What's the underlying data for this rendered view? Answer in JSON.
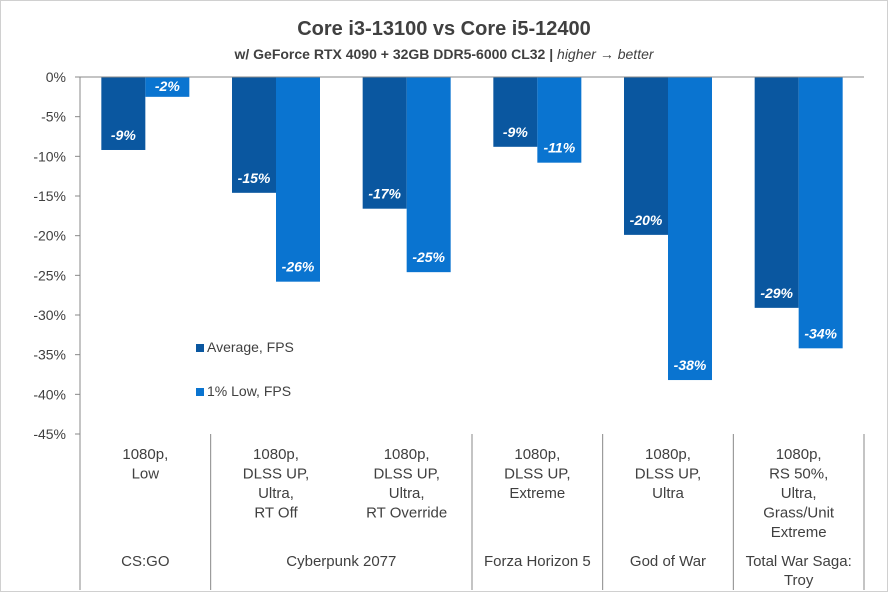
{
  "chart_data": {
    "type": "bar",
    "title": "Core i3-13100 vs Core i5-12400",
    "subtitle_main": "w/ GeForce RTX 4090 + 32GB DDR5-6000 CL32 |",
    "subtitle_italic": "higher → better",
    "ylim": [
      -45,
      0
    ],
    "yticks": [
      "0%",
      "-5%",
      "-10%",
      "-15%",
      "-20%",
      "-25%",
      "-30%",
      "-35%",
      "-40%",
      "-45%"
    ],
    "categories": [
      {
        "setting": [
          "1080p,",
          "Low"
        ],
        "game": "CS:GO"
      },
      {
        "setting": [
          "1080p,",
          "DLSS UP,",
          "Ultra,",
          "RT Off"
        ],
        "game": "Cyberpunk 2077"
      },
      {
        "setting": [
          "1080p,",
          "DLSS UP,",
          "Ultra,",
          "RT Override"
        ],
        "game": ""
      },
      {
        "setting": [
          "1080p,",
          "DLSS UP,",
          "Extreme"
        ],
        "game": "Forza Horizon 5"
      },
      {
        "setting": [
          "1080p,",
          "DLSS UP,",
          "Ultra"
        ],
        "game": "God of War"
      },
      {
        "setting": [
          "1080p,",
          "RS 50%,",
          "Ultra,",
          "Grass/Unit",
          "Extreme"
        ],
        "game": [
          "Total War Saga:",
          "Troy"
        ]
      }
    ],
    "series": [
      {
        "name": "Average, FPS",
        "color": "#0a57a0",
        "values": [
          -9.2,
          -14.6,
          -16.6,
          -8.8,
          -19.9,
          -29.1
        ],
        "labels": [
          "-9%",
          "-15%",
          "-17%",
          "-9%",
          "-20%",
          "-29%"
        ]
      },
      {
        "name": "1% Low, FPS",
        "color": "#0a74d0",
        "values": [
          -2.5,
          -25.8,
          -24.6,
          -10.8,
          -38.2,
          -34.2
        ],
        "labels": [
          "-2%",
          "-26%",
          "-25%",
          "-11%",
          "-38%",
          "-34%"
        ]
      }
    ],
    "legend_placement": "inside-bottom-left",
    "grid": false
  }
}
